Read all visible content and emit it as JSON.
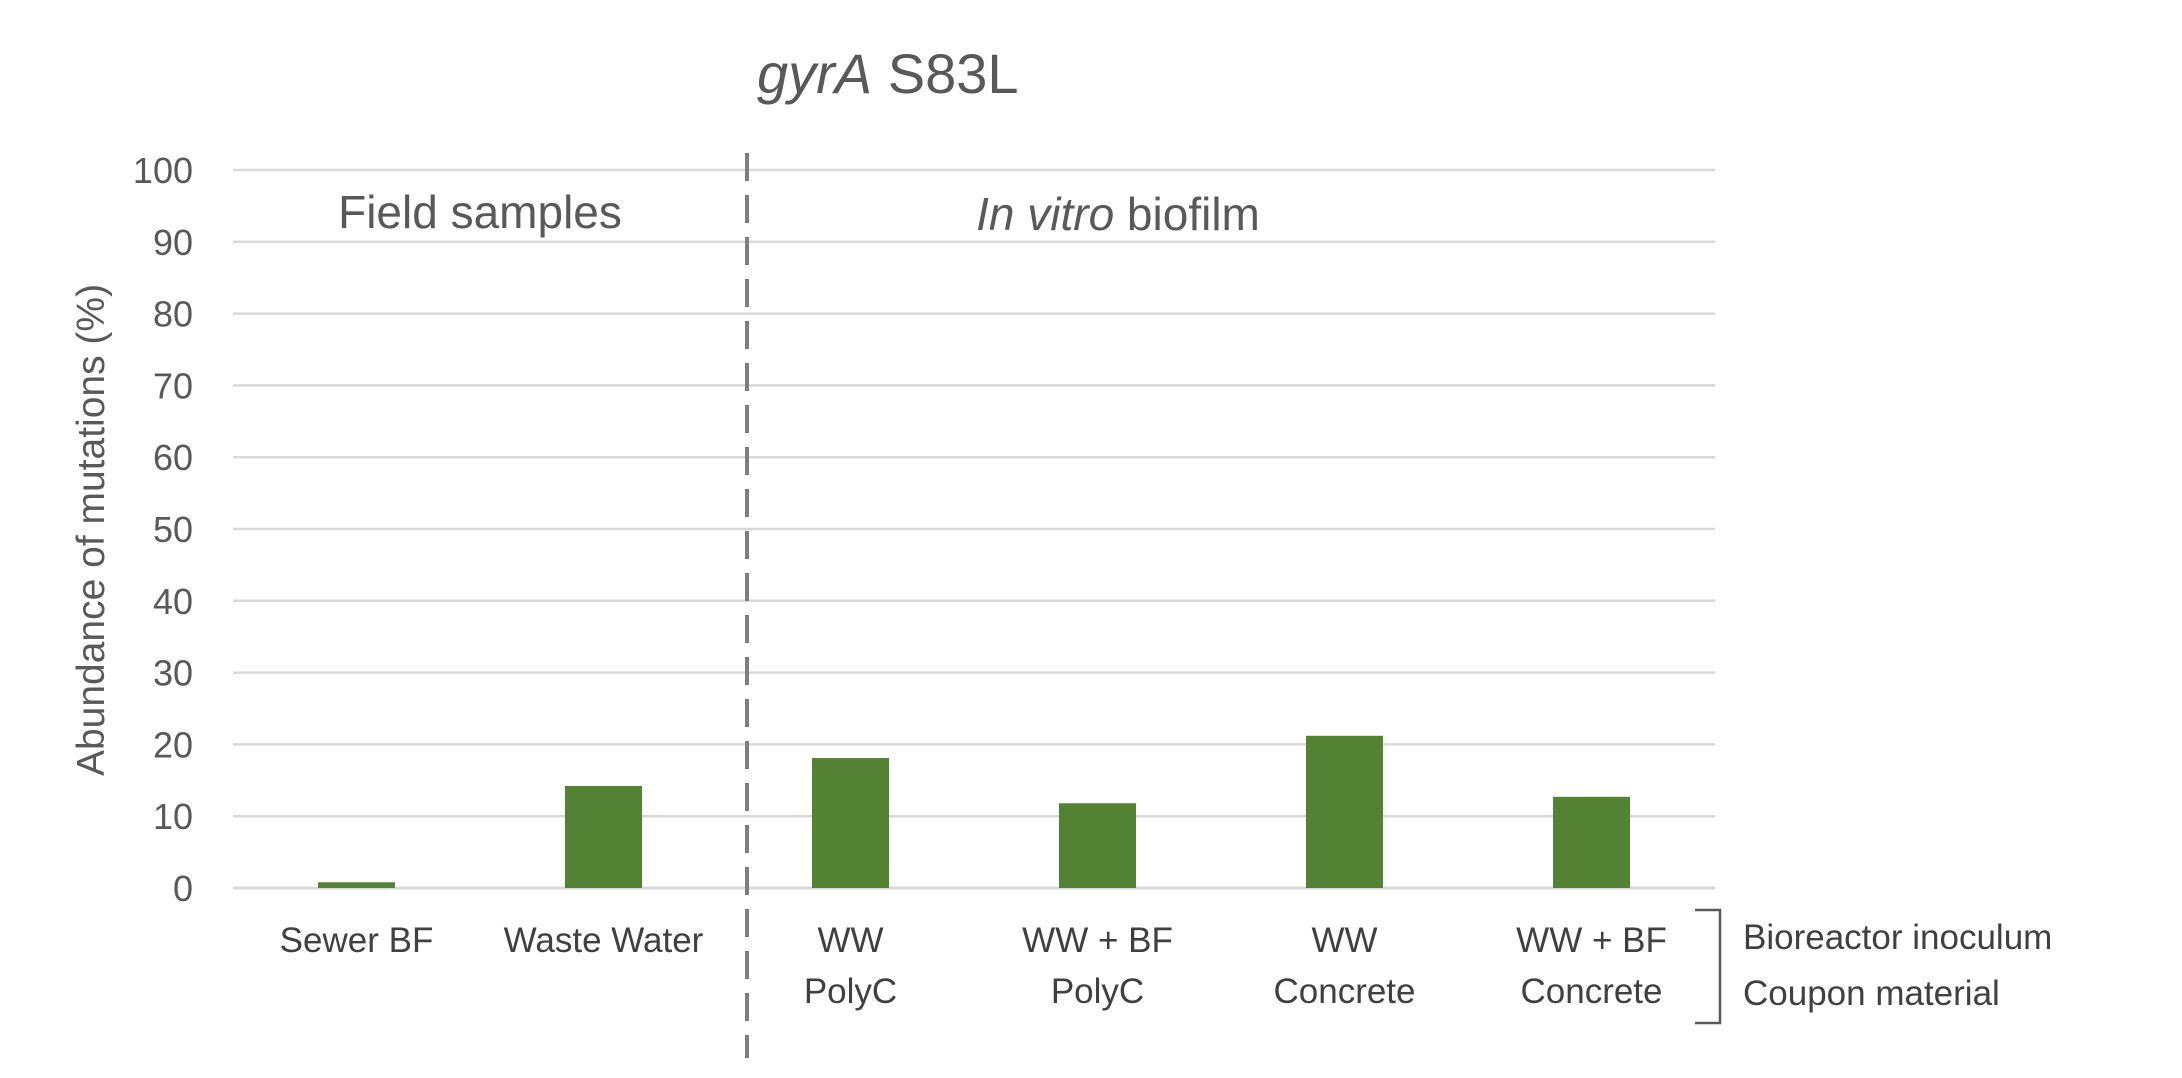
{
  "chart_data": {
    "type": "bar",
    "title_italic": "gyrA",
    "title_rest": " S83L",
    "ylabel": "Abundance of mutations (%)",
    "ylim": [
      0,
      100
    ],
    "yticks": [
      0,
      10,
      20,
      30,
      40,
      50,
      60,
      70,
      80,
      90,
      100
    ],
    "grid": true,
    "bar_color": "#548235",
    "categories": [
      {
        "line1": "Sewer BF",
        "line2": ""
      },
      {
        "line1": "Waste Water",
        "line2": ""
      },
      {
        "line1": "WW",
        "line2": "PolyC"
      },
      {
        "line1": "WW + BF",
        "line2": "PolyC"
      },
      {
        "line1": "WW",
        "line2": "Concrete"
      },
      {
        "line1": "WW + BF",
        "line2": "Concrete"
      }
    ],
    "values": [
      0.8,
      14.2,
      18.1,
      11.8,
      21.2,
      12.7
    ],
    "group_labels": {
      "field": "Field samples",
      "invitro_italic": "In vitro",
      "invitro_rest": " biofilm"
    },
    "bracket_labels": {
      "line1": "Bioreactor inoculum",
      "line2": "Coupon material"
    }
  }
}
